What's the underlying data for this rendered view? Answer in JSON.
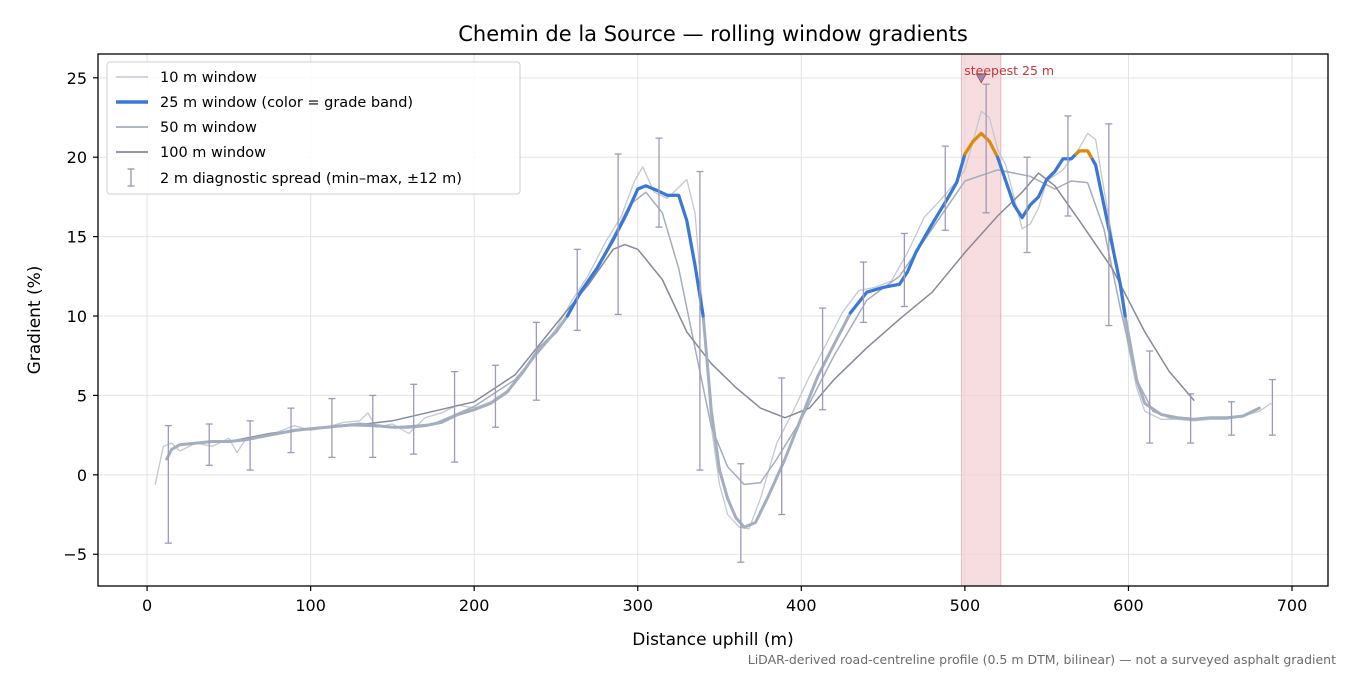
{
  "chart_data": {
    "type": "line",
    "title": "Chemin de la Source — rolling window gradients",
    "xlabel": "Distance uphill (m)",
    "ylabel": "Gradient (%)",
    "xlim": [
      -30,
      722
    ],
    "ylim": [
      -7,
      26.5
    ],
    "xticks": [
      0,
      100,
      200,
      300,
      400,
      500,
      600,
      700
    ],
    "yticks": [
      -5,
      0,
      5,
      10,
      15,
      20,
      25
    ],
    "ytick_labels": [
      "−5",
      "0",
      "5",
      "10",
      "15",
      "20",
      "25"
    ],
    "grid": true,
    "legend_position": "top-left",
    "footnote": "LiDAR-derived road-centreline profile (0.5 m DTM, bilinear) — not a surveyed asphalt gradient",
    "highlight": {
      "label": "steepest 25 m",
      "x_start": 498,
      "x_end": 522,
      "peak_x": 510,
      "peak_y": 25.0
    },
    "colors": {
      "w10": "#c3c8d1",
      "w25_base": "#a3afbf",
      "w25_band_blue": "#3a78d6",
      "w25_band_orange": "#e08a0b",
      "w50": "#a4adbd",
      "w100": "#858a98",
      "errorbar": "#9d9ab8",
      "highlight_fill": "#f3cfd3",
      "highlight_text": "#c0393b"
    },
    "series": [
      {
        "name": "10 m window",
        "color": "#c3c8d1",
        "width": 1.3,
        "points": [
          [
            5,
            -0.6
          ],
          [
            10,
            1.8
          ],
          [
            15,
            2.0
          ],
          [
            20,
            1.5
          ],
          [
            30,
            2.0
          ],
          [
            40,
            1.8
          ],
          [
            50,
            2.3
          ],
          [
            55,
            1.4
          ],
          [
            60,
            2.2
          ],
          [
            70,
            2.5
          ],
          [
            80,
            2.7
          ],
          [
            90,
            3.1
          ],
          [
            100,
            2.8
          ],
          [
            110,
            3.0
          ],
          [
            120,
            3.3
          ],
          [
            130,
            3.4
          ],
          [
            135,
            3.9
          ],
          [
            140,
            3.0
          ],
          [
            150,
            3.2
          ],
          [
            160,
            2.6
          ],
          [
            170,
            3.6
          ],
          [
            180,
            3.9
          ],
          [
            190,
            4.4
          ],
          [
            200,
            4.2
          ],
          [
            210,
            4.6
          ],
          [
            220,
            5.3
          ],
          [
            230,
            6.5
          ],
          [
            240,
            7.8
          ],
          [
            250,
            9.2
          ],
          [
            260,
            11.0
          ],
          [
            270,
            12.6
          ],
          [
            280,
            14.6
          ],
          [
            290,
            16.3
          ],
          [
            298,
            18.5
          ],
          [
            303,
            19.4
          ],
          [
            310,
            17.8
          ],
          [
            318,
            17.4
          ],
          [
            325,
            18.1
          ],
          [
            330,
            18.6
          ],
          [
            335,
            16.5
          ],
          [
            340,
            10.0
          ],
          [
            345,
            3.0
          ],
          [
            350,
            -0.6
          ],
          [
            355,
            -2.5
          ],
          [
            362,
            -3.3
          ],
          [
            368,
            -3.4
          ],
          [
            375,
            -1.5
          ],
          [
            385,
            2.0
          ],
          [
            395,
            4.0
          ],
          [
            405,
            6.2
          ],
          [
            415,
            8.2
          ],
          [
            425,
            10.2
          ],
          [
            435,
            11.6
          ],
          [
            445,
            11.8
          ],
          [
            455,
            12.2
          ],
          [
            465,
            14.0
          ],
          [
            475,
            16.2
          ],
          [
            485,
            17.3
          ],
          [
            495,
            18.5
          ],
          [
            500,
            19.2
          ],
          [
            505,
            21.0
          ],
          [
            510,
            22.9
          ],
          [
            515,
            22.5
          ],
          [
            520,
            20.5
          ],
          [
            525,
            19.5
          ],
          [
            530,
            17.5
          ],
          [
            535,
            15.5
          ],
          [
            540,
            15.8
          ],
          [
            545,
            16.8
          ],
          [
            550,
            18.5
          ],
          [
            560,
            19.2
          ],
          [
            570,
            20.6
          ],
          [
            575,
            21.5
          ],
          [
            580,
            21.1
          ],
          [
            585,
            18.0
          ],
          [
            590,
            15.0
          ],
          [
            600,
            8.0
          ],
          [
            605,
            5.5
          ],
          [
            610,
            4.0
          ],
          [
            620,
            3.5
          ],
          [
            630,
            3.5
          ],
          [
            640,
            3.4
          ],
          [
            650,
            3.5
          ],
          [
            660,
            3.5
          ],
          [
            670,
            3.7
          ],
          [
            680,
            4.0
          ],
          [
            687,
            4.5
          ]
        ]
      },
      {
        "name": "25 m window (color = grade band)",
        "color": "#a3afbf",
        "width": 3.0,
        "points": [
          [
            12,
            1.0
          ],
          [
            15,
            1.6
          ],
          [
            20,
            1.9
          ],
          [
            30,
            2.0
          ],
          [
            40,
            2.1
          ],
          [
            50,
            2.1
          ],
          [
            60,
            2.2
          ],
          [
            70,
            2.4
          ],
          [
            80,
            2.6
          ],
          [
            90,
            2.8
          ],
          [
            100,
            2.9
          ],
          [
            110,
            3.0
          ],
          [
            120,
            3.1
          ],
          [
            130,
            3.2
          ],
          [
            140,
            3.1
          ],
          [
            150,
            3.0
          ],
          [
            160,
            3.0
          ],
          [
            170,
            3.1
          ],
          [
            180,
            3.3
          ],
          [
            190,
            3.8
          ],
          [
            200,
            4.1
          ],
          [
            210,
            4.5
          ],
          [
            220,
            5.2
          ],
          [
            230,
            6.5
          ],
          [
            240,
            8.0
          ],
          [
            250,
            9.0
          ],
          [
            257,
            10.0
          ],
          [
            265,
            11.5
          ],
          [
            275,
            13.0
          ],
          [
            285,
            14.8
          ],
          [
            293,
            16.4
          ],
          [
            300,
            18.0
          ],
          [
            305,
            18.2
          ],
          [
            312,
            17.9
          ],
          [
            318,
            17.6
          ],
          [
            325,
            17.6
          ],
          [
            330,
            16.0
          ],
          [
            335,
            13.2
          ],
          [
            340,
            10.0
          ],
          [
            345,
            4.0
          ],
          [
            350,
            0.3
          ],
          [
            355,
            -1.5
          ],
          [
            360,
            -2.7
          ],
          [
            365,
            -3.3
          ],
          [
            372,
            -3.0
          ],
          [
            380,
            -1.3
          ],
          [
            390,
            1.0
          ],
          [
            400,
            3.6
          ],
          [
            410,
            6.2
          ],
          [
            420,
            8.2
          ],
          [
            430,
            10.2
          ],
          [
            440,
            11.5
          ],
          [
            450,
            11.8
          ],
          [
            460,
            12.0
          ],
          [
            465,
            12.8
          ],
          [
            470,
            14.0
          ],
          [
            480,
            15.8
          ],
          [
            490,
            17.5
          ],
          [
            495,
            18.4
          ],
          [
            500,
            20.2
          ],
          [
            505,
            21.0
          ],
          [
            510,
            21.5
          ],
          [
            515,
            21.0
          ],
          [
            520,
            20.0
          ],
          [
            525,
            18.5
          ],
          [
            530,
            17.0
          ],
          [
            535,
            16.2
          ],
          [
            540,
            17.0
          ],
          [
            545,
            17.5
          ],
          [
            550,
            18.6
          ],
          [
            555,
            19.1
          ],
          [
            560,
            19.9
          ],
          [
            565,
            19.9
          ],
          [
            570,
            20.4
          ],
          [
            575,
            20.4
          ],
          [
            580,
            19.5
          ],
          [
            585,
            17.0
          ],
          [
            590,
            14.5
          ],
          [
            595,
            12.0
          ],
          [
            598,
            10.0
          ],
          [
            605,
            6.0
          ],
          [
            610,
            4.5
          ],
          [
            620,
            3.8
          ],
          [
            630,
            3.6
          ],
          [
            640,
            3.5
          ],
          [
            650,
            3.6
          ],
          [
            660,
            3.6
          ],
          [
            670,
            3.7
          ],
          [
            680,
            4.2
          ]
        ],
        "bands": [
          {
            "x_start": 257,
            "x_end": 340,
            "color": "#3a78d6"
          },
          {
            "x_start": 430,
            "x_end": 500,
            "color": "#3a78d6"
          },
          {
            "x_start": 500,
            "x_end": 520,
            "color": "#e08a0b"
          },
          {
            "x_start": 520,
            "x_end": 568,
            "color": "#3a78d6"
          },
          {
            "x_start": 568,
            "x_end": 578,
            "color": "#e08a0b"
          },
          {
            "x_start": 578,
            "x_end": 598,
            "color": "#3a78d6"
          }
        ]
      },
      {
        "name": "50 m window",
        "color": "#a4adbd",
        "width": 1.5,
        "points": [
          [
            25,
            2.0
          ],
          [
            50,
            2.1
          ],
          [
            75,
            2.5
          ],
          [
            100,
            2.9
          ],
          [
            125,
            3.1
          ],
          [
            150,
            3.0
          ],
          [
            175,
            3.2
          ],
          [
            200,
            4.3
          ],
          [
            225,
            6.0
          ],
          [
            250,
            9.0
          ],
          [
            275,
            13.0
          ],
          [
            295,
            17.0
          ],
          [
            305,
            17.8
          ],
          [
            315,
            16.5
          ],
          [
            325,
            13.0
          ],
          [
            335,
            8.0
          ],
          [
            345,
            3.0
          ],
          [
            355,
            0.5
          ],
          [
            365,
            -0.6
          ],
          [
            375,
            -0.5
          ],
          [
            385,
            1.0
          ],
          [
            400,
            3.5
          ],
          [
            420,
            7.5
          ],
          [
            440,
            11.0
          ],
          [
            460,
            12.5
          ],
          [
            480,
            15.5
          ],
          [
            500,
            18.5
          ],
          [
            520,
            19.2
          ],
          [
            540,
            18.8
          ],
          [
            555,
            18.0
          ],
          [
            565,
            18.5
          ],
          [
            575,
            18.4
          ],
          [
            585,
            15.5
          ],
          [
            595,
            10.5
          ],
          [
            605,
            6.0
          ],
          [
            615,
            4.0
          ],
          [
            625,
            3.6
          ],
          [
            640,
            3.5
          ],
          [
            660,
            3.6
          ]
        ]
      },
      {
        "name": "100 m window",
        "color": "#858a98",
        "width": 1.5,
        "points": [
          [
            50,
            2.1
          ],
          [
            75,
            2.6
          ],
          [
            100,
            2.9
          ],
          [
            125,
            3.1
          ],
          [
            150,
            3.4
          ],
          [
            175,
            4.0
          ],
          [
            200,
            4.6
          ],
          [
            225,
            6.3
          ],
          [
            250,
            9.5
          ],
          [
            270,
            12.0
          ],
          [
            285,
            14.2
          ],
          [
            292,
            14.5
          ],
          [
            300,
            14.2
          ],
          [
            315,
            12.3
          ],
          [
            330,
            9.0
          ],
          [
            345,
            7.0
          ],
          [
            360,
            5.5
          ],
          [
            375,
            4.2
          ],
          [
            390,
            3.6
          ],
          [
            405,
            4.2
          ],
          [
            420,
            6.0
          ],
          [
            440,
            8.0
          ],
          [
            460,
            9.8
          ],
          [
            480,
            11.5
          ],
          [
            500,
            14.0
          ],
          [
            520,
            16.3
          ],
          [
            535,
            17.8
          ],
          [
            545,
            19.0
          ],
          [
            555,
            18.2
          ],
          [
            570,
            16.0
          ],
          [
            590,
            13.0
          ],
          [
            610,
            9.0
          ],
          [
            625,
            6.5
          ],
          [
            640,
            4.7
          ]
        ]
      }
    ],
    "errorbars": {
      "name": "2 m diagnostic spread (min–max, ±12 m)",
      "color": "#9d9ab8",
      "points": [
        {
          "x": 13,
          "low": -4.3,
          "high": 3.1
        },
        {
          "x": 38,
          "low": 0.6,
          "high": 3.2
        },
        {
          "x": 63,
          "low": 0.3,
          "high": 3.4
        },
        {
          "x": 88,
          "low": 1.4,
          "high": 4.2
        },
        {
          "x": 113,
          "low": 1.1,
          "high": 4.8
        },
        {
          "x": 138,
          "low": 1.1,
          "high": 5.0
        },
        {
          "x": 163,
          "low": 1.3,
          "high": 5.7
        },
        {
          "x": 188,
          "low": 0.8,
          "high": 6.5
        },
        {
          "x": 213,
          "low": 3.0,
          "high": 6.9
        },
        {
          "x": 238,
          "low": 4.7,
          "high": 9.6
        },
        {
          "x": 263,
          "low": 9.1,
          "high": 14.2
        },
        {
          "x": 288,
          "low": 10.1,
          "high": 20.2
        },
        {
          "x": 313,
          "low": 15.6,
          "high": 21.2
        },
        {
          "x": 338,
          "low": 0.3,
          "high": 19.1
        },
        {
          "x": 363,
          "low": -5.5,
          "high": 0.7
        },
        {
          "x": 388,
          "low": -2.5,
          "high": 6.1
        },
        {
          "x": 413,
          "low": 4.1,
          "high": 10.5
        },
        {
          "x": 438,
          "low": 9.6,
          "high": 13.4
        },
        {
          "x": 463,
          "low": 10.6,
          "high": 15.2
        },
        {
          "x": 488,
          "low": 15.4,
          "high": 20.7
        },
        {
          "x": 513,
          "low": 16.5,
          "high": 24.6
        },
        {
          "x": 538,
          "low": 14.0,
          "high": 20.0
        },
        {
          "x": 563,
          "low": 16.3,
          "high": 22.6
        },
        {
          "x": 588,
          "low": 9.4,
          "high": 22.1
        },
        {
          "x": 613,
          "low": 2.0,
          "high": 7.8
        },
        {
          "x": 638,
          "low": 2.0,
          "high": 5.1
        },
        {
          "x": 663,
          "low": 2.5,
          "high": 4.6
        },
        {
          "x": 688,
          "low": 2.5,
          "high": 6.0
        }
      ]
    }
  }
}
